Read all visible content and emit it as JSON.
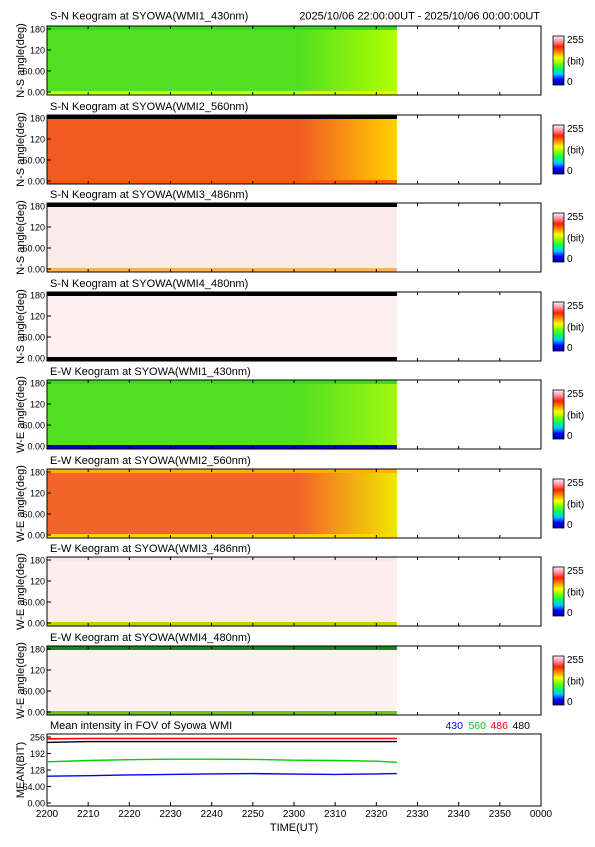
{
  "header": {
    "title": "S-N Keogram at SYOWA(WMI1_430nm)",
    "time_range": "2025/10/06 22:00:00UT - 2025/10/06 00:00:00UT"
  },
  "colorbar": {
    "max_label": "255",
    "unit_label": "(bit)",
    "min_label": "0",
    "colors": [
      "#0000a0",
      "#0000ff",
      "#00c8ff",
      "#00ff60",
      "#80ff00",
      "#ffff00",
      "#ff9000",
      "#ff2000",
      "#ff90a0",
      "#fff0f0"
    ]
  },
  "chart_data": [
    {
      "type": "heatmap",
      "title": "S-N Keogram at SYOWA(WMI1_430nm)",
      "ylabel": "N-S angle(deg)",
      "yticks": [
        "180",
        "120",
        "60.00",
        "0.00"
      ],
      "ylim": [
        0,
        180
      ],
      "data_end_time": "2325",
      "fill_color": "#50e020",
      "edge_color": "#b4ff00",
      "bottom_band_color": "#d8ff00",
      "top_band_color": "#3ad820"
    },
    {
      "type": "heatmap",
      "title": "S-N Keogram at SYOWA(WMI2_560nm)",
      "ylabel": "N-S angle(deg)",
      "yticks": [
        "180",
        "120",
        "60.00",
        "0.00"
      ],
      "ylim": [
        0,
        180
      ],
      "data_end_time": "2325",
      "fill_color": "#f25a22",
      "edge_color": "#ffd200",
      "bottom_band_color": "#ff5a00",
      "top_band_color": "#000000"
    },
    {
      "type": "heatmap",
      "title": "S-N Keogram at SYOWA(WMI3_486nm)",
      "ylabel": "N-S angle(deg)",
      "yticks": [
        "180",
        "120",
        "60.00",
        "0.00"
      ],
      "ylim": [
        0,
        180
      ],
      "data_end_time": "2325",
      "fill_color": "#fbeaea",
      "edge_color": "#fbeaea",
      "bottom_band_color": "#ffb060",
      "top_band_color": "#000000"
    },
    {
      "type": "heatmap",
      "title": "S-N Keogram at SYOWA(WMI4_480nm)",
      "ylabel": "N-S angle(deg)",
      "yticks": [
        "180",
        "120",
        "60.00",
        "0.00"
      ],
      "ylim": [
        0,
        180
      ],
      "data_end_time": "2325",
      "fill_color": "#fdf0f0",
      "edge_color": "#fdf0f0",
      "bottom_band_color": "#000000",
      "top_band_color": "#000000"
    },
    {
      "type": "heatmap",
      "title": "E-W Keogram at SYOWA(WMI1_430nm)",
      "ylabel": "W-E angle(deg)",
      "yticks": [
        "180",
        "120",
        "60.00",
        "0.00"
      ],
      "ylim": [
        0,
        180
      ],
      "data_end_time": "2325",
      "fill_color": "#52e020",
      "edge_color": "#a0f810",
      "bottom_band_color": "#0000c8",
      "top_band_color": "#40d820"
    },
    {
      "type": "heatmap",
      "title": "E-W Keogram at SYOWA(WMI2_560nm)",
      "ylabel": "W-E angle(deg)",
      "yticks": [
        "180",
        "120",
        "60.00",
        "0.00"
      ],
      "ylim": [
        0,
        180
      ],
      "data_end_time": "2325",
      "fill_color": "#f46428",
      "edge_color": "#f0e800",
      "bottom_band_color": "#ffd800",
      "top_band_color": "#ffb000"
    },
    {
      "type": "heatmap",
      "title": "E-W Keogram at SYOWA(WMI3_486nm)",
      "ylabel": "W-E angle(deg)",
      "yticks": [
        "180",
        "120",
        "60.00",
        "0.00"
      ],
      "ylim": [
        0,
        180
      ],
      "data_end_time": "2325",
      "fill_color": "#fcecec",
      "edge_color": "#fcecec",
      "bottom_band_color": "#c8d000",
      "top_band_color": "#fbe6e6"
    },
    {
      "type": "heatmap",
      "title": "E-W Keogram at SYOWA(WMI4_480nm)",
      "ylabel": "W-E angle(deg)",
      "yticks": [
        "180",
        "120",
        "60.00",
        "0.00"
      ],
      "ylim": [
        0,
        180
      ],
      "data_end_time": "2325",
      "fill_color": "#fdf2f2",
      "edge_color": "#fdf2f2",
      "bottom_band_color": "#70c020",
      "top_band_color": "#208020"
    },
    {
      "type": "line",
      "title": "Mean intensity in FOV of Syowa WMI",
      "ylabel": "MEAN(BIT)",
      "xlabel": "TIME(UT)",
      "ylim": [
        0,
        256
      ],
      "yticks": [
        "256",
        "192",
        "128",
        "64.00",
        "0.00"
      ],
      "xticks": [
        "2200",
        "2210",
        "2220",
        "2230",
        "2240",
        "2250",
        "2300",
        "2310",
        "2320",
        "2330",
        "2340",
        "2350",
        "0000"
      ],
      "x": [
        0,
        10,
        20,
        30,
        40,
        50,
        60,
        70,
        80,
        85
      ],
      "series": [
        {
          "name": "430",
          "color": "#0000ff",
          "values": [
            104,
            106,
            109,
            111,
            113,
            114,
            112,
            111,
            113,
            114
          ]
        },
        {
          "name": "560",
          "color": "#00d000",
          "values": [
            160,
            165,
            168,
            170,
            170,
            169,
            166,
            165,
            162,
            158
          ]
        },
        {
          "name": "486",
          "color": "#ff0000",
          "values": [
            249,
            250,
            250,
            250,
            250,
            250,
            250,
            250,
            250,
            250
          ]
        },
        {
          "name": "480",
          "color": "#000000",
          "values": [
            235,
            238,
            238,
            238,
            238,
            238,
            238,
            238,
            238,
            238
          ]
        }
      ]
    }
  ]
}
